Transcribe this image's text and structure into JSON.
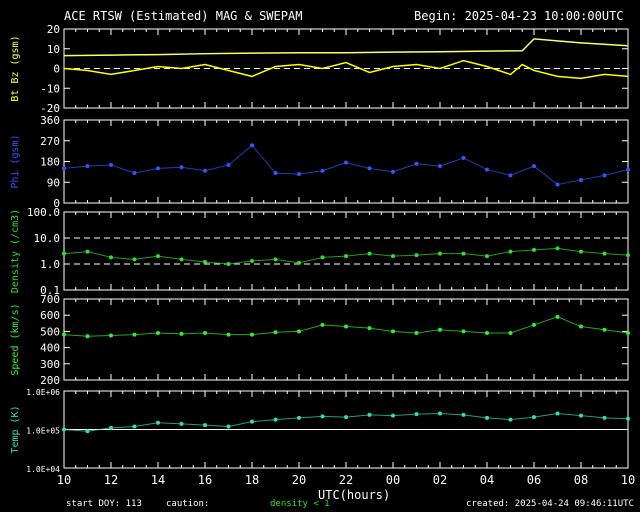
{
  "header": {
    "title": "ACE RTSW (Estimated) MAG & SWEPAM",
    "begin": "Begin: 2025-04-23 10:00:00UTC"
  },
  "footer": {
    "start_doy": "start DOY: 113",
    "caution": "caution:",
    "density_note": "density < 1",
    "created": "created: 2025-04-24 09:46:11UTC"
  },
  "colors": {
    "bt": "#ffff66",
    "bz": "#ffff00",
    "phi": "#3355ff",
    "density": "#33dd33",
    "speed": "#33ee33",
    "temp": "#33ddbb",
    "axis": "#ffffff",
    "caution": "#33dd33"
  },
  "chart_data": [
    {
      "type": "line",
      "panel": "mag",
      "ylabel": "Bt Bz (gsm)",
      "ylim": [
        -20,
        20
      ],
      "yticks": [
        "20",
        "10",
        "0",
        "-10",
        "-20"
      ],
      "hlines": [
        0
      ],
      "series": [
        {
          "name": "Bt",
          "x": [
            0,
            2,
            4,
            6,
            8,
            10,
            12,
            14,
            16,
            18,
            19.5,
            20,
            22,
            24
          ],
          "values": [
            6.5,
            6.8,
            7,
            7.5,
            7.8,
            8,
            8,
            8.3,
            8.5,
            8.8,
            9,
            15,
            13,
            11.5
          ]
        },
        {
          "name": "Bz",
          "x": [
            0,
            1,
            2,
            3,
            4,
            5,
            6,
            7,
            8,
            9,
            10,
            11,
            12,
            13,
            14,
            15,
            16,
            17,
            18,
            19,
            19.5,
            20,
            21,
            22,
            23,
            24
          ],
          "values": [
            0,
            -1,
            -3,
            -1,
            1,
            0,
            2,
            -1,
            -4,
            1,
            2,
            0,
            3,
            -2,
            1,
            2,
            0,
            4,
            1,
            -3,
            2,
            -1,
            -4,
            -5,
            -3,
            -4
          ]
        }
      ]
    },
    {
      "type": "scatter",
      "panel": "phi",
      "ylabel": "Phi (gsm)",
      "ylim": [
        0,
        360
      ],
      "yticks": [
        "360",
        "270",
        "180",
        "90",
        "0"
      ],
      "series": [
        {
          "name": "Phi",
          "x": [
            0,
            1,
            2,
            3,
            4,
            5,
            6,
            7,
            8,
            9,
            10,
            11,
            12,
            13,
            14,
            15,
            16,
            17,
            18,
            19,
            20,
            21,
            22,
            23,
            24
          ],
          "values": [
            150,
            160,
            165,
            130,
            150,
            155,
            140,
            165,
            250,
            130,
            125,
            140,
            175,
            150,
            135,
            170,
            160,
            195,
            145,
            120,
            160,
            80,
            100,
            120,
            145
          ]
        }
      ]
    },
    {
      "type": "scatter",
      "panel": "density",
      "ylabel": "Density (/cm3)",
      "ylim": [
        0.1,
        100
      ],
      "scale": "log",
      "yticks": [
        "100.0",
        "10.0",
        "1.0",
        "0.1"
      ],
      "hlines": [
        10,
        1
      ],
      "series": [
        {
          "name": "Density",
          "x": [
            0,
            1,
            2,
            3,
            4,
            5,
            6,
            7,
            8,
            9,
            10,
            11,
            12,
            13,
            14,
            15,
            16,
            17,
            18,
            19,
            20,
            21,
            22,
            23,
            24
          ],
          "values": [
            2.5,
            3,
            1.8,
            1.5,
            2,
            1.5,
            1.2,
            1,
            1.3,
            1.5,
            1.1,
            1.8,
            2,
            2.5,
            2,
            2.2,
            2.5,
            2.5,
            2,
            3,
            3.5,
            4,
            3,
            2.5,
            2.2
          ]
        }
      ]
    },
    {
      "type": "scatter",
      "panel": "speed",
      "ylabel": "Speed (km/s)",
      "ylim": [
        200,
        700
      ],
      "yticks": [
        "700",
        "600",
        "500",
        "400",
        "300",
        "200"
      ],
      "series": [
        {
          "name": "Speed",
          "x": [
            0,
            1,
            2,
            3,
            4,
            5,
            6,
            7,
            8,
            9,
            10,
            11,
            12,
            13,
            14,
            15,
            16,
            17,
            18,
            19,
            20,
            21,
            22,
            23,
            24
          ],
          "values": [
            480,
            470,
            475,
            480,
            490,
            485,
            490,
            480,
            480,
            495,
            500,
            540,
            530,
            520,
            500,
            490,
            510,
            500,
            490,
            490,
            540,
            590,
            530,
            510,
            490
          ]
        }
      ]
    },
    {
      "type": "scatter",
      "panel": "temp",
      "ylabel": "Temp (K)",
      "ylim": [
        10000,
        1000000
      ],
      "scale": "log",
      "yticks": [
        "1.0E+06",
        "1.0E+05",
        "1.0E+04"
      ],
      "hlines": [
        100000
      ],
      "series": [
        {
          "name": "Temp",
          "x": [
            0,
            1,
            2,
            3,
            4,
            5,
            6,
            7,
            8,
            9,
            10,
            11,
            12,
            13,
            14,
            15,
            16,
            17,
            18,
            19,
            20,
            21,
            22,
            23,
            24
          ],
          "values": [
            100000,
            90000,
            110000,
            120000,
            150000,
            140000,
            130000,
            120000,
            160000,
            180000,
            200000,
            220000,
            210000,
            240000,
            230000,
            250000,
            260000,
            240000,
            200000,
            180000,
            210000,
            260000,
            230000,
            200000,
            190000
          ]
        }
      ]
    }
  ],
  "xaxis": {
    "label": "UTC(hours)",
    "ticks": [
      "10",
      "12",
      "14",
      "16",
      "18",
      "20",
      "22",
      "00",
      "02",
      "04",
      "06",
      "08",
      "10"
    ]
  }
}
